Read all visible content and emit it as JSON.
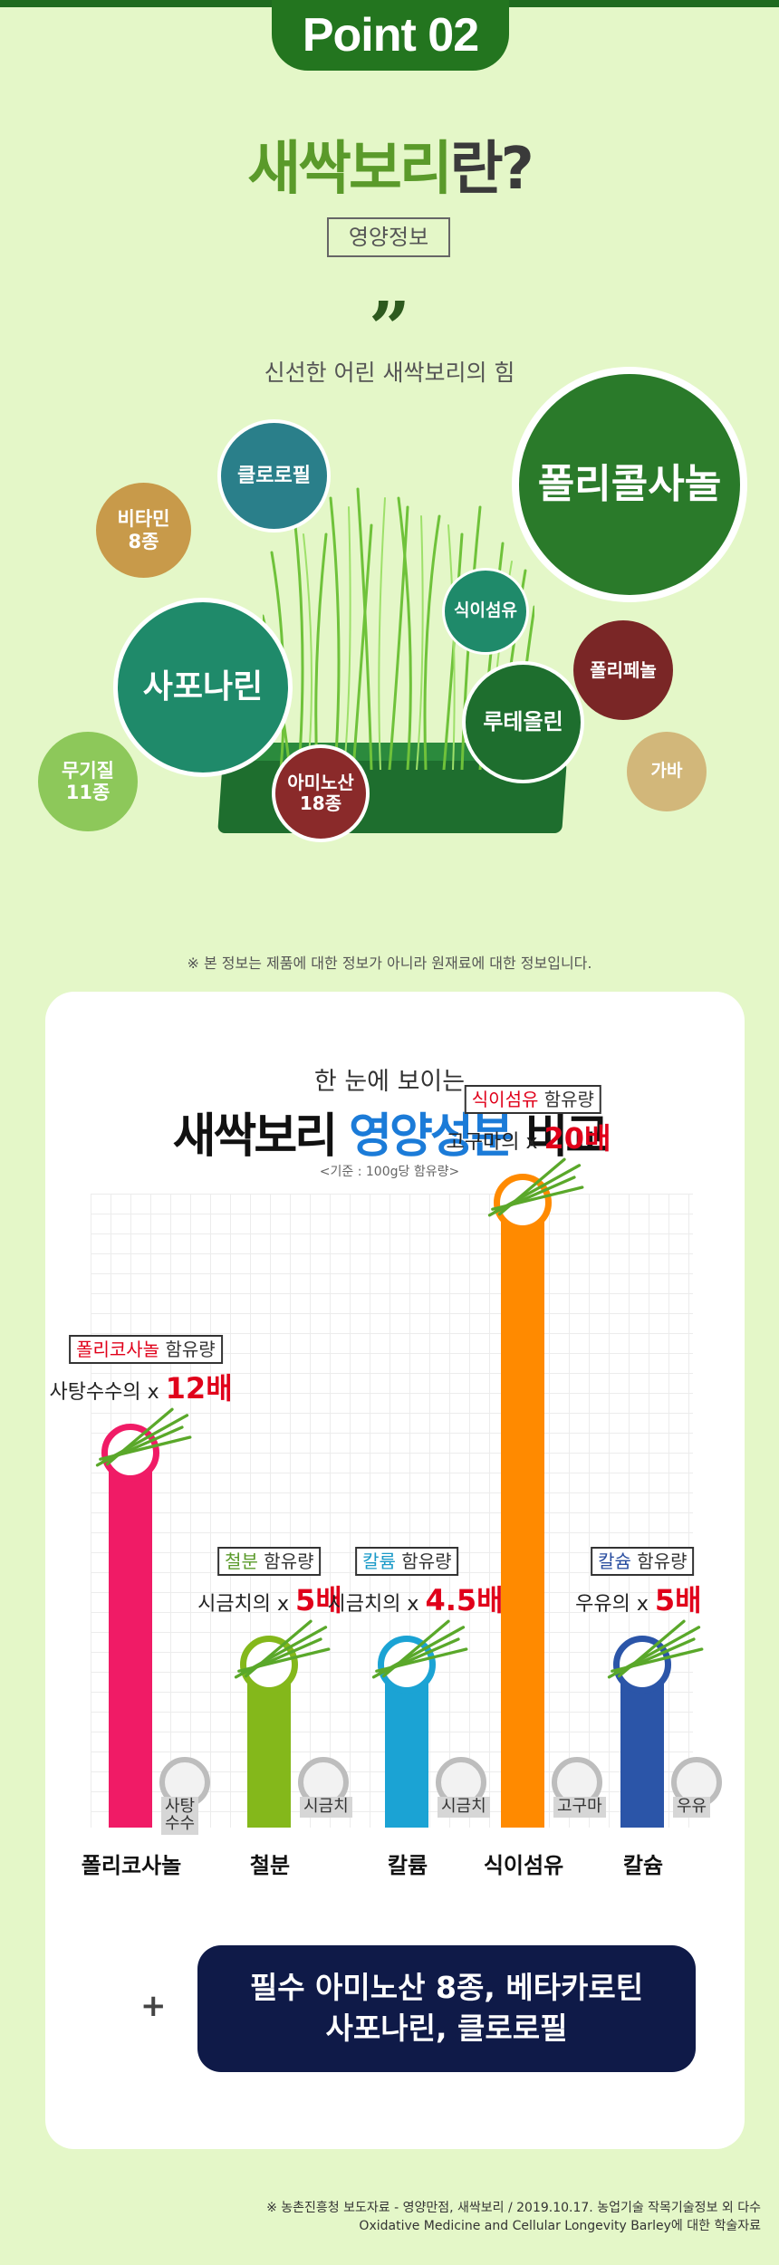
{
  "header": {
    "badge": "Point 02"
  },
  "title": {
    "green": "새싹보리",
    "dark": "란?"
  },
  "subtitle": "영양정보",
  "quote": {
    "mark": "”",
    "text": "신선한 어린 새싹보리의 힘"
  },
  "nutrients": [
    {
      "label": "클로로필",
      "color": "#2a7f8a"
    },
    {
      "label": "비타민\n8종",
      "color": "#c89a4a"
    },
    {
      "label": "사포나린",
      "color": "#1f8a6a"
    },
    {
      "label": "무기질\n11종",
      "color": "#8dc85a"
    },
    {
      "label": "아미노산\n18종",
      "color": "#8a2a2a"
    },
    {
      "label": "식이섬유",
      "color": "#1f8a6a"
    },
    {
      "label": "폴리콜사놀",
      "color": "#2a7a2a"
    },
    {
      "label": "폴리페놀",
      "color": "#7a2626"
    },
    {
      "label": "루테올린",
      "color": "#1e6e2e"
    },
    {
      "label": "가바",
      "color": "#d2b77a"
    }
  ],
  "notice": "※ 본 정보는 제품에 대한 정보가 아니라 원재료에 대한 정보입니다.",
  "comparison": {
    "subtitle": "한 눈에 보이는",
    "title_a": "새싹보리 ",
    "title_b": "영양성분",
    "title_c": " 비교",
    "basis": "<기준 : 100g당 함유량>",
    "items": [
      {
        "category": "폴리코사놀",
        "tag": "폴리코사놀",
        "tag_suffix": " 함유량",
        "tag_color": "#e0001a",
        "ratio_prefix": "사탕수수의 x ",
        "ratio_value": "12배",
        "ratio": 12,
        "compare": "사탕\n수수",
        "color": "#f01b66"
      },
      {
        "category": "철분",
        "tag": "철분",
        "tag_suffix": " 함유량",
        "tag_color": "#5a9a2a",
        "ratio_prefix": "시금치의 x ",
        "ratio_value": "5배",
        "ratio": 5,
        "compare": "시금치",
        "color": "#84b81b"
      },
      {
        "category": "칼륨",
        "tag": "칼륨",
        "tag_suffix": " 함유량",
        "tag_color": "#1a9ac8",
        "ratio_prefix": "시금치의 x ",
        "ratio_value": "4.5배",
        "ratio": 4.5,
        "compare": "시금치",
        "color": "#1ba3d4"
      },
      {
        "category": "식이섬유",
        "tag": "식이섬유",
        "tag_suffix": " 함유량",
        "tag_color": "#e0001a",
        "ratio_prefix": "고구마의 x ",
        "ratio_value": "20배",
        "ratio": 20,
        "compare": "고구마",
        "color": "#ff8a00"
      },
      {
        "category": "칼슘",
        "tag": "칼슘",
        "tag_suffix": " 함유량",
        "tag_color": "#2a4ea0",
        "ratio_prefix": "우유의 x ",
        "ratio_value": "5배",
        "ratio": 5,
        "compare": "우유",
        "color": "#2b55a8"
      }
    ]
  },
  "plus": "+",
  "extra": {
    "line1": "필수 아미노산 8종, 베타카로틴",
    "line2": "사포나린, 클로로필"
  },
  "source": {
    "line1": "※ 농촌진흥청 보도자료 - 영양만점, 새싹보리 / 2019.10.17. 농업기술 작목기술정보 외 다수",
    "line2": "Oxidative Medicine and Cellular Longevity Barley에 대한 학술자료"
  }
}
